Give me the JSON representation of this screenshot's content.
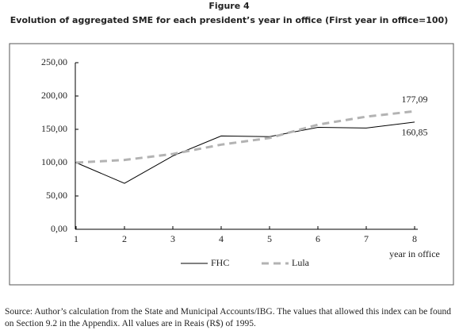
{
  "chart_data": {
    "type": "line",
    "title": "Figure 4",
    "subtitle": "Evolution of aggregated SME for each president’s year in office (First year in office=100)",
    "categories": [
      "1",
      "2",
      "3",
      "4",
      "5",
      "6",
      "7",
      "8"
    ],
    "x_label": "year in office",
    "series": [
      {
        "name": "FHC",
        "color": "#000000",
        "values": [
          100,
          69,
          110,
          140,
          139,
          153,
          152,
          160.85
        ],
        "value_labels": [
          null,
          null,
          null,
          null,
          null,
          null,
          null,
          "160,85"
        ]
      },
      {
        "name": "Lula",
        "color": "#b3b3b3",
        "values": [
          100,
          104,
          113,
          127,
          137,
          157,
          169,
          177.09
        ],
        "value_labels": [
          null,
          null,
          null,
          null,
          null,
          null,
          null,
          "177,09"
        ]
      }
    ],
    "ylim": [
      0,
      250
    ],
    "yticks": [
      {
        "value": 0,
        "label": "0,00"
      },
      {
        "value": 50,
        "label": "50,00"
      },
      {
        "value": 100,
        "label": "100,00"
      },
      {
        "value": 150,
        "label": "150,00"
      },
      {
        "value": 200,
        "label": "200,00"
      },
      {
        "value": 250,
        "label": "250,00"
      }
    ],
    "legend": "bottom"
  },
  "source": "Source: Author’s calculation from the State and Municipal Accounts/IBG. The values that allowed this index can be found on Section 9.2 in the Appendix. All values are in Reais (R$) of 1995."
}
